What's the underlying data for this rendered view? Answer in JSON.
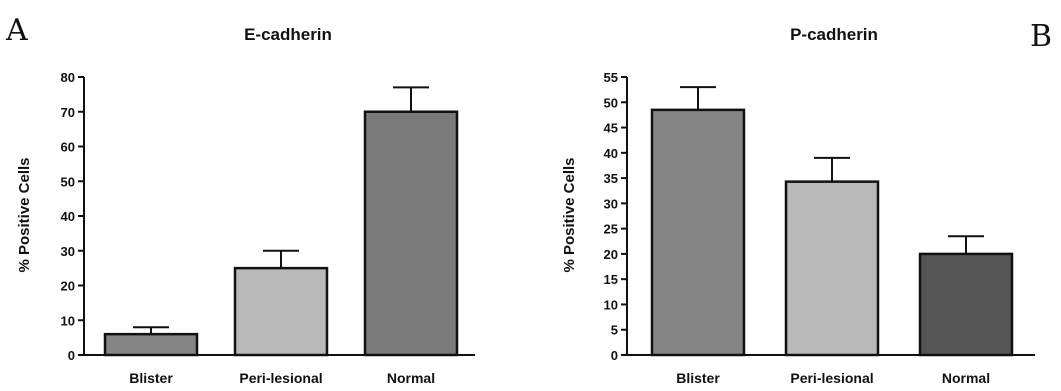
{
  "chart_data": [
    {
      "type": "bar",
      "panel": "A",
      "title": "E-cadherin",
      "ylabel": "% Positive Cells",
      "xlabel": "",
      "categories": [
        "Blister",
        "Peri-lesional",
        "Normal"
      ],
      "values": [
        6,
        25,
        70
      ],
      "error": [
        2,
        5,
        7
      ],
      "colors": [
        "#858585",
        "#b9b9b9",
        "#7a7a7a"
      ],
      "ylim": [
        0,
        80
      ],
      "yticks": [
        0,
        10,
        20,
        30,
        40,
        50,
        60,
        70,
        80
      ],
      "grid": false
    },
    {
      "type": "bar",
      "panel": "B",
      "title": "P-cadherin",
      "ylabel": "% Positive Cells",
      "xlabel": "",
      "categories": [
        "Blister",
        "Peri-lesional",
        "Normal"
      ],
      "values": [
        48.5,
        34.3,
        20
      ],
      "error": [
        4.5,
        4.7,
        3.5
      ],
      "colors": [
        "#858585",
        "#b9b9b9",
        "#555555"
      ],
      "ylim": [
        0,
        55
      ],
      "yticks": [
        0,
        5,
        10,
        15,
        20,
        25,
        30,
        35,
        40,
        45,
        50,
        55
      ],
      "grid": false
    }
  ]
}
